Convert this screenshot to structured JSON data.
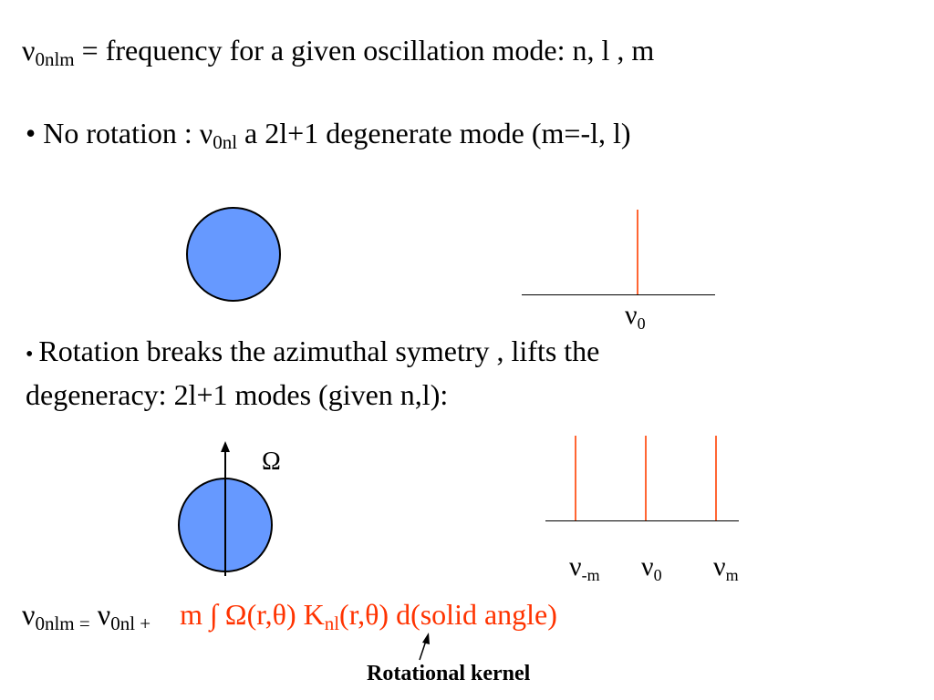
{
  "line1": {
    "nu": "ν",
    "sub": "0nlm",
    "text": " = frequency for a given oscillation mode:   n,   l , m"
  },
  "line2": {
    "bullet": "• ",
    "text_before": "No rotation :   ",
    "nu": "ν",
    "sub": "0nl",
    "text_after": "    a 2l+1  degenerate  mode   (m=-l, l)"
  },
  "diagram1": {
    "nu": "ν",
    "sub": "0"
  },
  "line3": {
    "bullet": "• ",
    "text": "Rotation breaks the azimuthal symetry , lifts the"
  },
  "line4": {
    "text": "degeneracy:   2l+1 modes  (given n,l):"
  },
  "diagram2": {
    "omega": "Ω",
    "nu_minus": "ν",
    "sub_minus": "-m",
    "nu_zero": "ν",
    "sub_zero": "0",
    "nu_m": "ν",
    "sub_m": "m"
  },
  "formula": {
    "nu1": "ν",
    "sub1": "0nlm =",
    "nu2": "ν",
    "sub2": "0nl  +",
    "red_part1": "m  ∫  Ω(r,θ)  K",
    "red_sub": "nl",
    "red_part2": "(r,θ)      d(solid angle)"
  },
  "caption": {
    "text": "Rotational kernel"
  },
  "colors": {
    "circle_fill": "#6699ff",
    "red_text": "#ff3300",
    "peak_line": "#ff6633"
  }
}
